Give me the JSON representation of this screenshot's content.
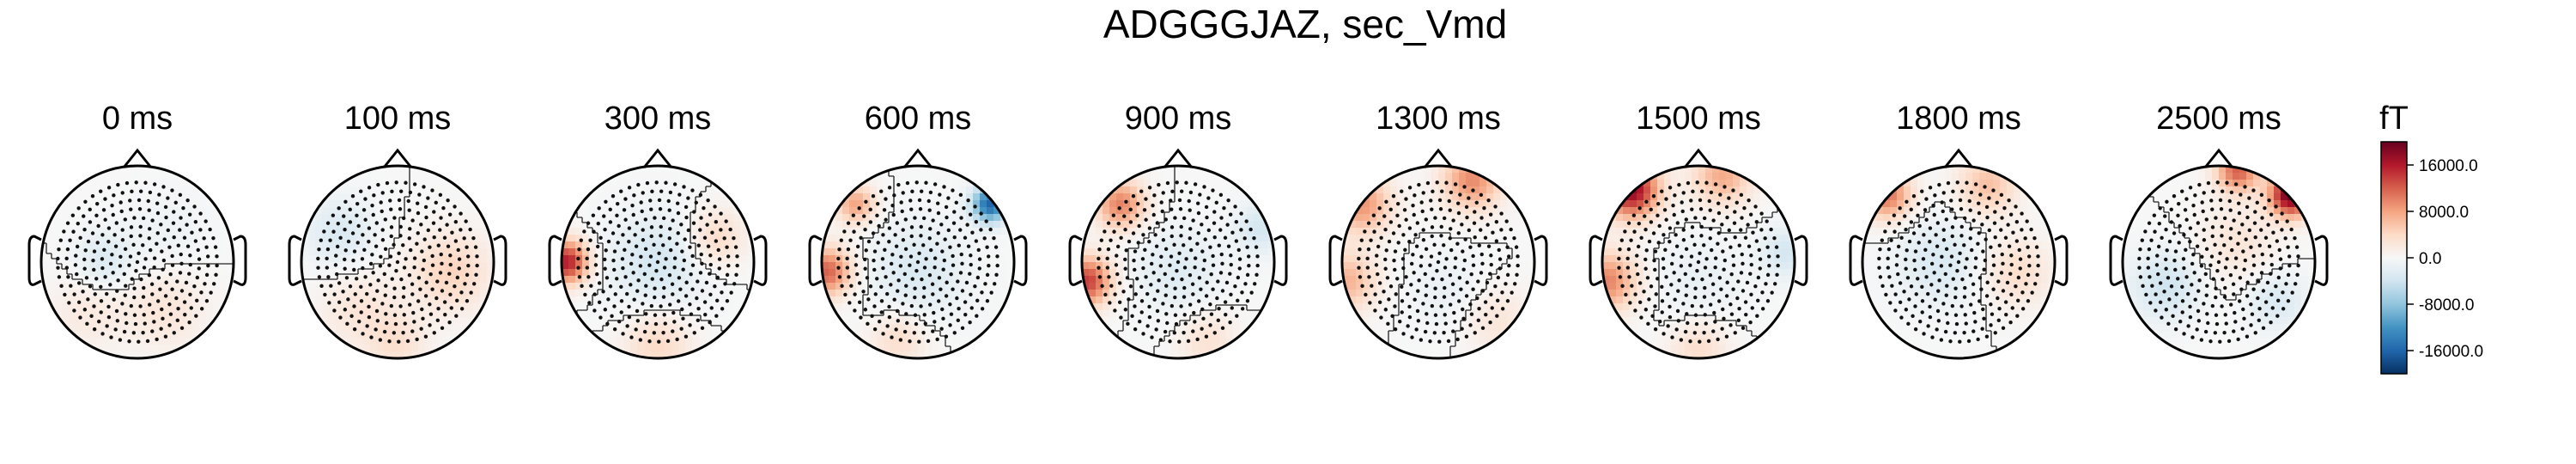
{
  "chart_data": {
    "type": "heatmap",
    "subtype": "topomap",
    "title": "ADGGGJAZ, sec_Vmd",
    "times": [
      "0 ms",
      "100 ms",
      "300 ms",
      "600 ms",
      "900 ms",
      "1300 ms",
      "1500 ms",
      "1800 ms",
      "2500 ms"
    ],
    "unit": "fT",
    "colorbar": {
      "colormap": "RdBu_r",
      "min": -20000,
      "max": 20000,
      "ticks": [
        16000,
        8000,
        0,
        -8000,
        -16000
      ],
      "tick_labels": [
        "16000.0",
        "8000.0",
        "0.0",
        "-8000.0",
        "-16000.0"
      ]
    },
    "maps": [
      {
        "time": "0 ms",
        "sources": [
          [
            -0.35,
            0.0,
            -3000,
            0.3
          ],
          [
            0.3,
            -0.5,
            2500,
            0.4
          ],
          [
            -0.5,
            -0.5,
            2000,
            0.4
          ],
          [
            0.3,
            0.3,
            -1000,
            0.4
          ]
        ]
      },
      {
        "time": "100 ms",
        "sources": [
          [
            -0.6,
            0.3,
            -3000,
            0.35
          ],
          [
            0.55,
            -0.1,
            4500,
            0.4
          ],
          [
            -0.4,
            -0.5,
            2500,
            0.4
          ],
          [
            0.0,
            -0.85,
            3000,
            0.3
          ]
        ]
      },
      {
        "time": "300 ms",
        "sources": [
          [
            -0.95,
            0.0,
            16000,
            0.22
          ],
          [
            0.6,
            0.25,
            4000,
            0.3
          ],
          [
            0.0,
            0.0,
            -3500,
            0.5
          ],
          [
            0.0,
            -0.85,
            4000,
            0.35
          ]
        ]
      },
      {
        "time": "600 ms",
        "sources": [
          [
            -0.95,
            -0.1,
            12000,
            0.25
          ],
          [
            0.75,
            0.6,
            -16000,
            0.18
          ],
          [
            -0.65,
            0.6,
            8000,
            0.2
          ],
          [
            0.0,
            -0.1,
            -3000,
            0.5
          ],
          [
            -0.2,
            -0.8,
            3500,
            0.3
          ]
        ]
      },
      {
        "time": "900 ms",
        "sources": [
          [
            -0.95,
            -0.2,
            14000,
            0.25
          ],
          [
            -0.6,
            0.6,
            10000,
            0.25
          ],
          [
            0.85,
            0.35,
            -3500,
            0.25
          ],
          [
            0.0,
            -0.1,
            -2500,
            0.45
          ],
          [
            0.3,
            -0.8,
            3000,
            0.3
          ]
        ]
      },
      {
        "time": "1300 ms",
        "sources": [
          [
            -0.8,
            0.6,
            9000,
            0.3
          ],
          [
            0.35,
            0.85,
            9500,
            0.3
          ],
          [
            -0.95,
            -0.2,
            7000,
            0.3
          ],
          [
            0.1,
            -0.3,
            -1500,
            0.4
          ],
          [
            0.6,
            -0.6,
            2500,
            0.35
          ]
        ]
      },
      {
        "time": "1500 ms",
        "sources": [
          [
            -0.7,
            0.75,
            18000,
            0.28
          ],
          [
            0.25,
            0.9,
            7500,
            0.3
          ],
          [
            -0.95,
            -0.2,
            10000,
            0.3
          ],
          [
            0.9,
            0.1,
            -3500,
            0.25
          ],
          [
            0.0,
            -0.2,
            -1500,
            0.45
          ],
          [
            0.0,
            -0.9,
            3500,
            0.3
          ]
        ]
      },
      {
        "time": "1800 ms",
        "sources": [
          [
            -0.75,
            0.7,
            11000,
            0.25
          ],
          [
            0.3,
            0.8,
            6000,
            0.3
          ],
          [
            -0.2,
            0.0,
            -3000,
            0.45
          ],
          [
            0.6,
            -0.1,
            3500,
            0.35
          ]
        ]
      },
      {
        "time": "2500 ms",
        "sources": [
          [
            0.75,
            0.7,
            20000,
            0.22
          ],
          [
            0.2,
            0.95,
            12000,
            0.22
          ],
          [
            -0.55,
            -0.25,
            -4000,
            0.35
          ],
          [
            0.6,
            -0.4,
            -3000,
            0.3
          ],
          [
            0.2,
            0.2,
            2500,
            0.4
          ]
        ]
      }
    ]
  }
}
